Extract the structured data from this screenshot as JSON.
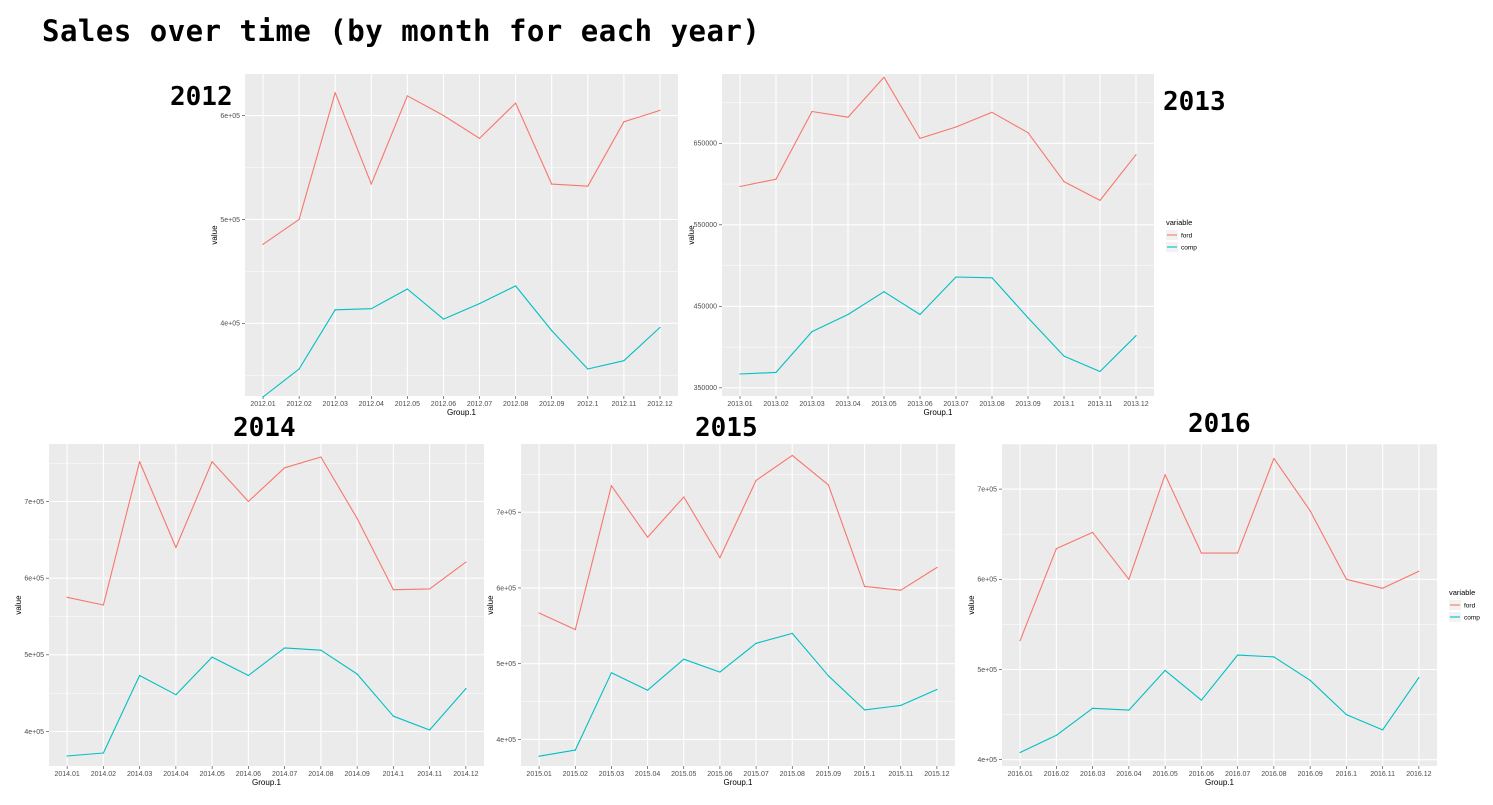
{
  "title": "Sales over time (by month for each year)",
  "colors": {
    "ford": "#F8766D",
    "comp": "#00BFC4",
    "panel": "#EBEBEB",
    "grid": "#FFFFFF"
  },
  "chart_data": [
    {
      "type": "line",
      "panel_label": "2012",
      "x": [
        "2012.01",
        "2012.02",
        "2012.03",
        "2012.04",
        "2012.05",
        "2012.06",
        "2012.07",
        "2012.08",
        "2012.09",
        "2012.1",
        "2012.11",
        "2012.12"
      ],
      "xlabel": "Group.1",
      "ylabel": "value",
      "ylim": [
        330000,
        640000
      ],
      "yticks": [
        400000,
        500000,
        600000
      ],
      "ytick_labels": [
        "4e+05",
        "5e+05",
        "6e+05"
      ],
      "series": [
        {
          "name": "ford",
          "values": [
            476000,
            500000,
            622000,
            534000,
            619000,
            600000,
            578000,
            612000,
            534000,
            532000,
            594000,
            605000
          ]
        },
        {
          "name": "comp",
          "values": [
            329000,
            356000,
            413000,
            414000,
            433000,
            404000,
            419000,
            436000,
            393000,
            356000,
            364000,
            396000
          ]
        }
      ],
      "legend": null
    },
    {
      "type": "line",
      "panel_label": "2013",
      "x": [
        "2013.01",
        "2013.02",
        "2013.03",
        "2013.04",
        "2013.05",
        "2013.06",
        "2013.07",
        "2013.08",
        "2013.09",
        "2013.1",
        "2013.11",
        "2013.12"
      ],
      "xlabel": "Group.1",
      "ylabel": "value",
      "ylim": [
        340000,
        735000
      ],
      "yticks": [
        350000,
        450000,
        550000,
        650000
      ],
      "ytick_labels": [
        "350000",
        "450000",
        "550000",
        "650000"
      ],
      "series": [
        {
          "name": "ford",
          "values": [
            597000,
            606000,
            689000,
            682000,
            731000,
            656000,
            670000,
            688000,
            663000,
            603000,
            580000,
            636000
          ]
        },
        {
          "name": "comp",
          "values": [
            367000,
            369000,
            419000,
            440000,
            468000,
            440000,
            486000,
            485000,
            436000,
            389000,
            370000,
            414000
          ]
        }
      ],
      "legend": {
        "title": "variable",
        "items": [
          "ford",
          "comp"
        ],
        "position": "right"
      }
    },
    {
      "type": "line",
      "panel_label": "2014",
      "x": [
        "2014.01",
        "2014.02",
        "2014.03",
        "2014.04",
        "2014.05",
        "2014.06",
        "2014.07",
        "2014.08",
        "2014.09",
        "2014.1",
        "2014.11",
        "2014.12"
      ],
      "xlabel": "Group.1",
      "ylabel": "value",
      "ylim": [
        355000,
        775000
      ],
      "yticks": [
        400000,
        500000,
        600000,
        700000
      ],
      "ytick_labels": [
        "4e+05",
        "5e+05",
        "6e+05",
        "7e+05"
      ],
      "series": [
        {
          "name": "ford",
          "values": [
            575000,
            565000,
            752000,
            640000,
            752000,
            700000,
            744000,
            758000,
            678000,
            585000,
            586000,
            621000
          ]
        },
        {
          "name": "comp",
          "values": [
            368000,
            372000,
            473000,
            448000,
            497000,
            473000,
            509000,
            506000,
            475000,
            420000,
            402000,
            456000
          ]
        }
      ],
      "legend": null
    },
    {
      "type": "line",
      "panel_label": "2015",
      "x": [
        "2015.01",
        "2015.02",
        "2015.03",
        "2015.04",
        "2015.05",
        "2015.06",
        "2015.07",
        "2015.08",
        "2015.09",
        "2015.1",
        "2015.11",
        "2015.12"
      ],
      "xlabel": "Group.1",
      "ylabel": "value",
      "ylim": [
        365000,
        790000
      ],
      "yticks": [
        400000,
        500000,
        600000,
        700000
      ],
      "ytick_labels": [
        "4e+05",
        "5e+05",
        "6e+05",
        "7e+05"
      ],
      "series": [
        {
          "name": "ford",
          "values": [
            567000,
            545000,
            735000,
            667000,
            720000,
            640000,
            742000,
            775000,
            736000,
            602000,
            597000,
            627000
          ]
        },
        {
          "name": "comp",
          "values": [
            378000,
            386000,
            488000,
            465000,
            506000,
            489000,
            527000,
            540000,
            484000,
            439000,
            445000,
            466000
          ]
        }
      ],
      "legend": null
    },
    {
      "type": "line",
      "panel_label": "2016",
      "x": [
        "2016.01",
        "2016.02",
        "2016.03",
        "2016.04",
        "2016.05",
        "2016.06",
        "2016.07",
        "2016.08",
        "2016.09",
        "2016.1",
        "2016.11",
        "2016.12"
      ],
      "xlabel": "Group.1",
      "ylabel": "value",
      "ylim": [
        393000,
        750000
      ],
      "yticks": [
        400000,
        500000,
        600000,
        700000
      ],
      "ytick_labels": [
        "4e+05",
        "5e+05",
        "6e+05",
        "7e+05"
      ],
      "series": [
        {
          "name": "ford",
          "values": [
            532000,
            634000,
            652000,
            600000,
            716000,
            629000,
            629000,
            734000,
            676000,
            600000,
            590000,
            609000
          ]
        },
        {
          "name": "comp",
          "values": [
            408000,
            427000,
            457000,
            455000,
            499000,
            466000,
            516000,
            514000,
            488000,
            450000,
            433000,
            491000
          ]
        }
      ],
      "legend": {
        "title": "variable",
        "items": [
          "ford",
          "comp"
        ],
        "position": "right"
      }
    }
  ]
}
